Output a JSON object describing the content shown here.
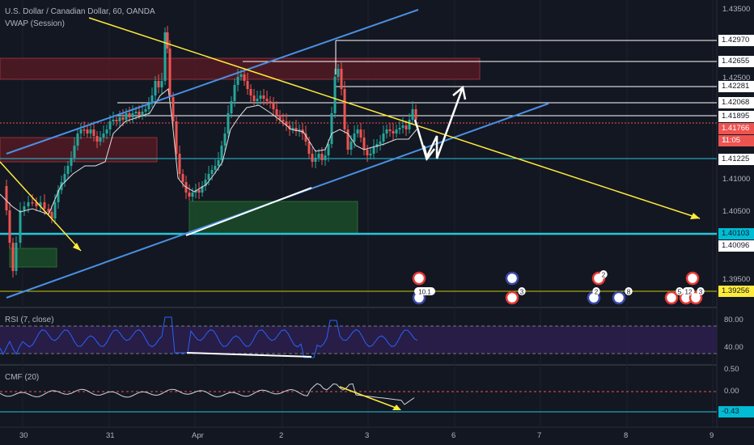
{
  "panes": {
    "main": {
      "title": "U.S. Dollar / Canadian Dollar, 60, OANDA",
      "indicator": "VWAP (Session)"
    },
    "rsi": {
      "title": "RSI (7, close)"
    },
    "cmf": {
      "title": "CMF (20)"
    }
  },
  "price_axis": {
    "ticks": [
      "1.43500",
      "1.42500",
      "1.41500",
      "1.41000",
      "1.40500",
      "1.39500"
    ],
    "level_labels": [
      {
        "text": "1.42970",
        "style": "white"
      },
      {
        "text": "1.42655",
        "style": "white"
      },
      {
        "text": "1.42281",
        "style": "white"
      },
      {
        "text": "1.42068",
        "style": "white"
      },
      {
        "text": "1.41895",
        "style": "white"
      },
      {
        "text": "1.41766",
        "style": "red"
      },
      {
        "text": "11:05",
        "style": "red"
      },
      {
        "text": "1.41225",
        "style": "white"
      },
      {
        "text": "1.40103",
        "style": "cyan"
      },
      {
        "text": "1.40096",
        "style": "white"
      },
      {
        "text": "1.39256",
        "style": "yellow"
      }
    ],
    "partial_label": "1"
  },
  "rsi_axis": {
    "ticks": [
      "80.00",
      "40.00"
    ]
  },
  "cmf_axis": {
    "ticks": [
      "0.50",
      "0.00"
    ],
    "current": "-0.43"
  },
  "time_axis": {
    "labels": [
      "30",
      "31",
      "Apr",
      "2",
      "3",
      "6",
      "7",
      "8",
      "9"
    ]
  },
  "events": {
    "badges": [
      "10.1",
      "3",
      "2",
      "2",
      "8",
      "5",
      "12",
      "3"
    ]
  },
  "colors": {
    "background": "#131722",
    "bull": "#26a69a",
    "bear": "#ef5350",
    "channel": "#4a90e2",
    "trend": "#ffeb3b",
    "support": "#26c6da",
    "rsi_line": "#2962ff",
    "rsi_band": "#2a1e4a"
  }
}
